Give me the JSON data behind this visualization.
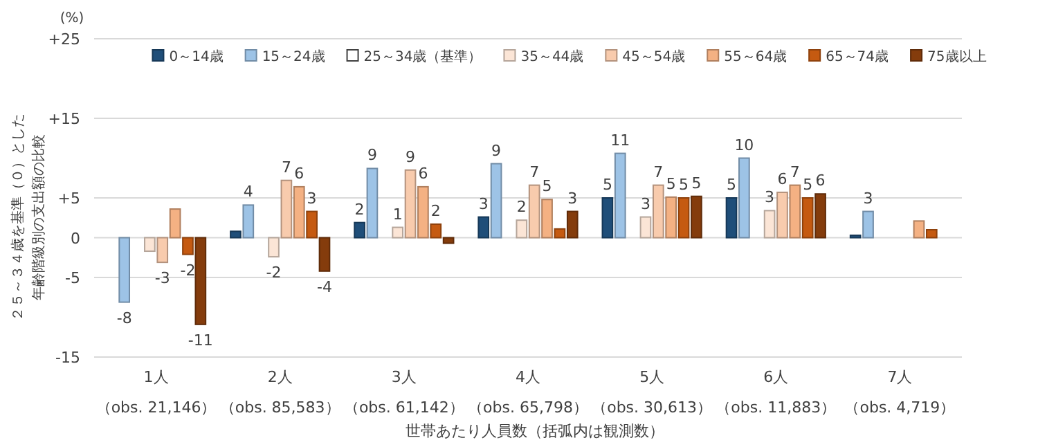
{
  "chart_data": {
    "type": "bar",
    "ylabel": "２５～３４歳を基準（０）とした年齢階級別の支出額の比較",
    "xlabel": "世帯あたり人員数（括弧内は観測数）",
    "annotations": [
      "(%)"
    ],
    "categories": [
      "1人（obs. 21,146）",
      "2人（obs. 85,583）",
      "3人（obs. 61,142）",
      "4人（obs. 65,798）",
      "5人（obs. 30,613）",
      "6人（obs. 11,883）",
      "7人（obs. 4,719）"
    ],
    "ylim": [
      -15,
      25
    ],
    "yticks": [
      {
        "value": 25,
        "label": "+25"
      },
      {
        "value": 15,
        "label": "+15"
      },
      {
        "value": 5,
        "label": "+5"
      },
      0,
      -5,
      -15
    ],
    "grid": "y",
    "legend": "top",
    "series": [
      {
        "name": "0～14歳",
        "color": "#1f4e79",
        "values": [
          null,
          0.8,
          1.9,
          2.6,
          5.0,
          5.0,
          0.3
        ],
        "value_labels": [
          null,
          null,
          "2",
          "3",
          "5",
          "5",
          null
        ]
      },
      {
        "name": "15～24歳",
        "color": "#9dc3e6",
        "values": [
          -8.1,
          4.1,
          8.7,
          9.3,
          10.6,
          10.0,
          3.3
        ],
        "value_labels": [
          "-8",
          "4",
          "9",
          "9",
          "11",
          "10",
          "3"
        ]
      },
      {
        "name": "25～34歳（基準）",
        "color": "#ffffff",
        "values": [
          0,
          0,
          0,
          0,
          0,
          0,
          0
        ],
        "value_labels": [
          null,
          null,
          null,
          null,
          null,
          null,
          null
        ]
      },
      {
        "name": "35～44歳",
        "color": "#fbe5d6",
        "values": [
          -1.7,
          -2.4,
          1.3,
          2.2,
          2.6,
          3.4,
          null
        ],
        "value_labels": [
          null,
          "-2",
          "1",
          "2",
          "3",
          "3",
          null
        ]
      },
      {
        "name": "45～54歳",
        "color": "#f8cbad",
        "values": [
          -3.1,
          7.2,
          8.5,
          6.6,
          6.6,
          5.7,
          null
        ],
        "value_labels": [
          "-3",
          "7",
          "9",
          "7",
          "7",
          "6",
          null
        ]
      },
      {
        "name": "55～64歳",
        "color": "#f4b183",
        "values": [
          3.6,
          6.4,
          6.4,
          4.8,
          5.1,
          6.6,
          2.1
        ],
        "value_labels": [
          null,
          "6",
          "6",
          "5",
          "5",
          "7",
          null
        ]
      },
      {
        "name": "65～74歳",
        "color": "#c55a11",
        "values": [
          -2.1,
          3.3,
          1.7,
          1.1,
          5.0,
          5.0,
          1.0
        ],
        "value_labels": [
          "-2",
          "3",
          "2",
          null,
          "5",
          "5",
          null
        ]
      },
      {
        "name": "75歳以上",
        "color": "#843c0c",
        "values": [
          -10.9,
          -4.2,
          -0.7,
          3.3,
          5.2,
          5.5,
          null
        ],
        "value_labels": [
          "-11",
          "-4",
          null,
          "3",
          "5",
          "6",
          null
        ]
      }
    ]
  }
}
